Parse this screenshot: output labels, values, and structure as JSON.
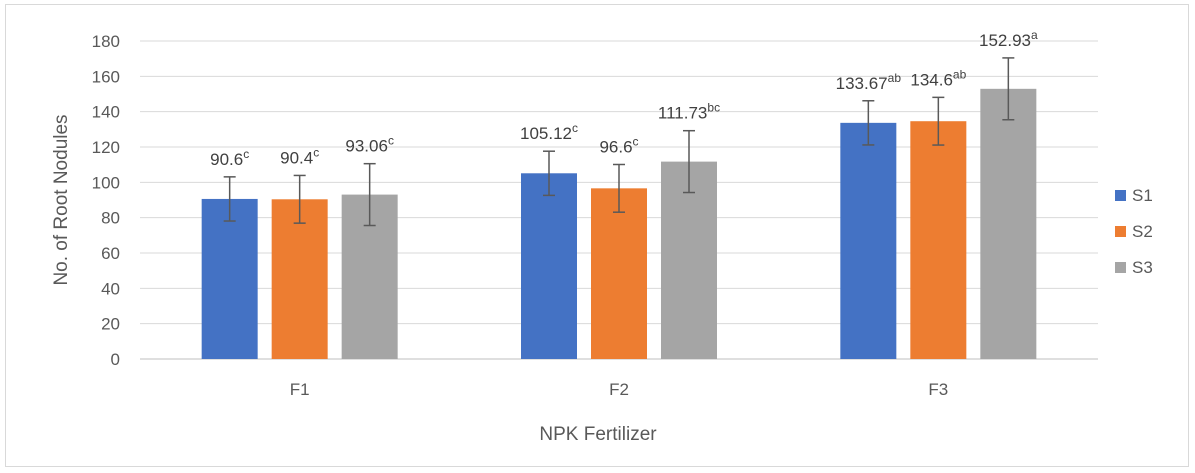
{
  "chart_data": {
    "type": "bar",
    "title": "",
    "xlabel": "NPK Fertilizer",
    "ylabel": "No. of Root Nodules",
    "categories": [
      "F1",
      "F2",
      "F3"
    ],
    "ylim": [
      0,
      180
    ],
    "yticks": [
      0,
      20,
      40,
      60,
      80,
      100,
      120,
      140,
      160,
      180
    ],
    "grid": true,
    "legend_position": "right",
    "series": [
      {
        "name": "S1",
        "color": "#4472C4",
        "values": [
          90.6,
          105.12,
          133.67
        ],
        "errors": [
          12.5,
          12.5,
          12.5
        ],
        "labels": [
          "90.6",
          "105.12",
          "133.67"
        ],
        "sup": [
          "c",
          "c",
          "ab"
        ]
      },
      {
        "name": "S2",
        "color": "#ED7D31",
        "values": [
          90.4,
          96.6,
          134.6
        ],
        "errors": [
          13.5,
          13.5,
          13.5
        ],
        "labels": [
          "90.4",
          "96.6",
          "134.6"
        ],
        "sup": [
          "c",
          "c",
          "ab"
        ]
      },
      {
        "name": "S3",
        "color": "#A5A5A5",
        "values": [
          93.06,
          111.73,
          152.93
        ],
        "errors": [
          17.5,
          17.5,
          17.5
        ],
        "labels": [
          "93.06",
          "111.73",
          "152.93"
        ],
        "sup": [
          "c",
          "bc",
          "a"
        ]
      }
    ]
  }
}
